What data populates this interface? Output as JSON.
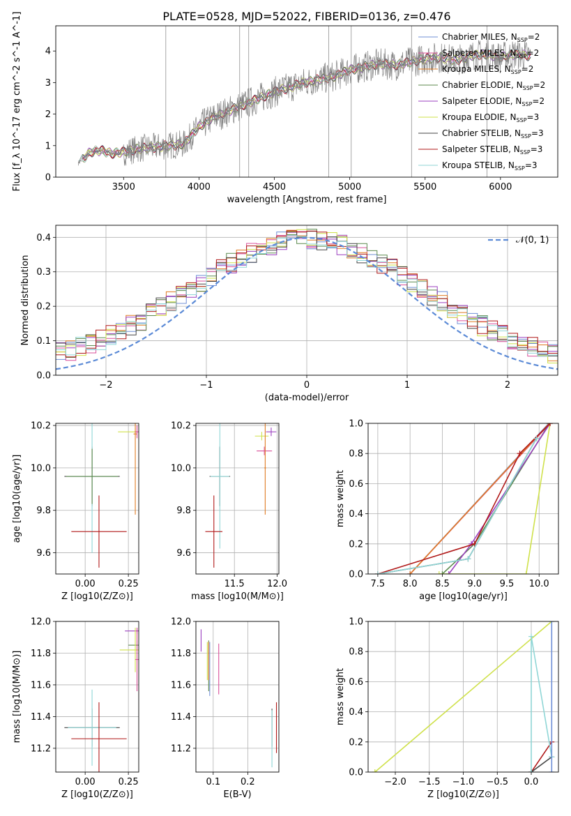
{
  "figure": {
    "title": "PLATE=0528, MJD=52022, FIBERID=0136, z=0.476"
  },
  "palette": {
    "Chabrier MILES": "#6f8fd6",
    "Salpeter MILES": "#d94f9a",
    "Kroupa MILES": "#e07b22",
    "Chabrier ELODIE": "#5c8a4e",
    "Salpeter ELODIE": "#9b3fbf",
    "Kroupa ELODIE": "#cfe14a",
    "Chabrier STELIB": "#444444",
    "Salpeter STELIB": "#b01818",
    "Kroupa STELIB": "#8fd6d6",
    "gaussian": "#5b8ad6",
    "observed": "#808080"
  },
  "chart_data": [
    {
      "id": "spectrum",
      "type": "line",
      "title": "PLATE=0528, MJD=52022, FIBERID=0136, z=0.476",
      "xlabel": "wavelength [Angstrom, rest frame]",
      "ylabel": "Flux [f_λ 10^-17 erg cm^-2 s^-1 A^-1]",
      "xlim": [
        3050,
        6380
      ],
      "ylim": [
        0,
        4.8
      ],
      "xticks": [
        3500,
        4000,
        4500,
        5000,
        5500,
        6000
      ],
      "yticks": [
        0,
        1,
        2,
        3,
        4
      ],
      "grid": false,
      "legend_placement": "top-right",
      "observed_flux": {
        "x": [
          3200,
          3280,
          3350,
          3420,
          3500,
          3600,
          3700,
          3800,
          3900,
          4000,
          4100,
          4200,
          4300,
          4400,
          4500,
          4600,
          4700,
          4800,
          4900,
          5000,
          5100,
          5200,
          5300,
          5400,
          5500,
          5600,
          5700,
          5800,
          5900,
          6000,
          6100,
          6200
        ],
        "y": [
          0.45,
          0.8,
          0.85,
          0.75,
          0.8,
          0.9,
          0.95,
          1.0,
          1.05,
          1.6,
          1.9,
          2.1,
          2.3,
          2.5,
          2.7,
          2.85,
          3.0,
          3.1,
          3.2,
          3.4,
          3.5,
          3.6,
          3.55,
          3.65,
          3.75,
          3.8,
          3.7,
          3.85,
          3.9,
          3.8,
          3.9,
          3.85
        ]
      },
      "series": [
        {
          "name": "Chabrier MILES, N_SSP=2"
        },
        {
          "name": "Salpeter MILES, N_SSP=2"
        },
        {
          "name": "Kroupa MILES, N_SSP=2"
        },
        {
          "name": "Chabrier ELODIE, N_SSP=2"
        },
        {
          "name": "Salpeter ELODIE, N_SSP=2"
        },
        {
          "name": "Kroupa ELODIE, N_SSP=3"
        },
        {
          "name": "Chabrier STELIB, N_SSP=3"
        },
        {
          "name": "Salpeter STELIB, N_SSP=3"
        },
        {
          "name": "Kroupa STELIB, N_SSP=3"
        }
      ]
    },
    {
      "id": "residuals",
      "type": "line",
      "xlabel": "(data-model)/error",
      "ylabel": "Normed distribution",
      "xlim": [
        -2.5,
        2.5
      ],
      "ylim": [
        0,
        0.435
      ],
      "xticks": [
        -2,
        -1,
        0,
        1,
        2
      ],
      "yticks": [
        0.0,
        0.1,
        0.2,
        0.3,
        0.4
      ],
      "grid": true,
      "legend": "N(0,1)",
      "legend_placement": "top-right",
      "gaussian": {
        "mean": 0,
        "sigma": 1
      }
    },
    {
      "id": "age-vs-Z",
      "type": "scatter",
      "xlabel": "Z [log10(Z/Z⊙)]",
      "ylabel": "age [log10(age/yr)]",
      "xlim": [
        -0.17,
        0.31
      ],
      "ylim": [
        9.5,
        10.21
      ],
      "xticks": [
        0.0,
        0.25
      ],
      "yticks": [
        9.6,
        9.8,
        10.0,
        10.2
      ],
      "grid": true,
      "points": [
        {
          "name": "Chabrier STELIB",
          "x": 0.04,
          "y": 9.96,
          "xerr": 0.16,
          "yerr": 0.14
        },
        {
          "name": "Kroupa STELIB",
          "x": 0.04,
          "y": 9.96,
          "xerr": 0.14,
          "yerr": 0.36
        },
        {
          "name": "Chabrier ELODIE",
          "x": 0.04,
          "y": 9.96,
          "xerr": 0.15,
          "yerr": 0.13
        },
        {
          "name": "Salpeter STELIB",
          "x": 0.08,
          "y": 9.7,
          "xerr": 0.16,
          "yerr": 0.17
        },
        {
          "name": "Kroupa ELODIE",
          "x": 0.29,
          "y": 10.17,
          "xerr": 0.1,
          "yerr": 0.02
        },
        {
          "name": "Kroupa MILES",
          "x": 0.29,
          "y": 10.16,
          "xerr": 0.01,
          "yerr": 0.38
        },
        {
          "name": "Salpeter MILES",
          "x": 0.3,
          "y": 10.17,
          "xerr": 0.01,
          "yerr": 0.03
        }
      ]
    },
    {
      "id": "age-vs-mass",
      "type": "scatter",
      "xlabel": "mass [log10(M/M⊙)]",
      "ylabel": "",
      "xlim": [
        11.05,
        12.02
      ],
      "ylim": [
        9.5,
        10.21
      ],
      "xticks": [
        11.5,
        12.0
      ],
      "yticks": [
        9.6,
        9.8,
        10.0,
        10.2
      ],
      "grid": true,
      "points": [
        {
          "name": "Chabrier STELIB",
          "x": 11.33,
          "y": 9.96,
          "xerr": 0.12,
          "yerr": 0.14
        },
        {
          "name": "Kroupa STELIB",
          "x": 11.33,
          "y": 9.96,
          "xerr": 0.11,
          "yerr": 0.34
        },
        {
          "name": "Salpeter STELIB",
          "x": 11.26,
          "y": 9.7,
          "xerr": 0.1,
          "yerr": 0.17
        },
        {
          "name": "Salpeter ELODIE",
          "x": 11.93,
          "y": 10.17,
          "xerr": 0.06,
          "yerr": 0.02
        },
        {
          "name": "Kroupa ELODIE",
          "x": 11.82,
          "y": 10.15,
          "xerr": 0.08,
          "yerr": 0.02
        },
        {
          "name": "Salpeter MILES",
          "x": 11.85,
          "y": 10.08,
          "xerr": 0.09,
          "yerr": 0.02
        },
        {
          "name": "Kroupa MILES",
          "x": 11.86,
          "y": 10.0,
          "xerr": 0.01,
          "yerr": 0.22
        }
      ]
    },
    {
      "id": "weight-vs-age",
      "type": "line",
      "xlabel": "age [log10(age/yr)]",
      "ylabel": "mass weight",
      "xlim": [
        7.35,
        10.3
      ],
      "ylim": [
        0,
        1
      ],
      "xticks": [
        7.5,
        8.0,
        8.5,
        9.0,
        9.5,
        10.0
      ],
      "yticks": [
        0.0,
        0.2,
        0.4,
        0.6,
        0.8,
        1.0
      ],
      "grid": true,
      "series": [
        {
          "name": "Chabrier MILES",
          "x": [
            8.0,
            10.15
          ],
          "y": [
            0.0,
            1.0
          ]
        },
        {
          "name": "Salpeter MILES",
          "x": [
            8.0,
            10.17
          ],
          "y": [
            0.0,
            1.0
          ]
        },
        {
          "name": "Kroupa MILES",
          "x": [
            8.0,
            10.16
          ],
          "y": [
            0.0,
            1.0
          ]
        },
        {
          "name": "Chabrier ELODIE",
          "x": [
            8.5,
            9.0,
            10.16
          ],
          "y": [
            0.0,
            0.2,
            1.0
          ]
        },
        {
          "name": "Salpeter ELODIE",
          "x": [
            8.6,
            8.95,
            10.17
          ],
          "y": [
            0.0,
            0.2,
            1.0
          ]
        },
        {
          "name": "Kroupa ELODIE",
          "x": [
            8.45,
            9.8,
            10.17
          ],
          "y": [
            0.0,
            0.0,
            1.0
          ]
        },
        {
          "name": "Chabrier STELIB",
          "x": [
            7.5,
            8.9,
            9.96
          ],
          "y": [
            0.0,
            0.1,
            0.9
          ]
        },
        {
          "name": "Salpeter STELIB",
          "x": [
            7.5,
            9.0,
            9.7,
            10.17
          ],
          "y": [
            0.0,
            0.2,
            0.8,
            1.0
          ]
        },
        {
          "name": "Kroupa STELIB",
          "x": [
            7.5,
            8.9,
            9.96
          ],
          "y": [
            0.0,
            0.1,
            0.9
          ]
        }
      ]
    },
    {
      "id": "mass-vs-Z",
      "type": "scatter",
      "xlabel": "Z [log10(Z/Z⊙)]",
      "ylabel": "mass [log10(M/M⊙)]",
      "xlim": [
        -0.17,
        0.31
      ],
      "ylim": [
        11.05,
        12.0
      ],
      "xticks": [
        0.0,
        0.25
      ],
      "yticks": [
        11.2,
        11.4,
        11.6,
        11.8,
        12.0
      ],
      "grid": true,
      "points": [
        {
          "name": "Chabrier STELIB",
          "x": 0.04,
          "y": 11.33,
          "xerr": 0.16,
          "yerr": 0.12
        },
        {
          "name": "Kroupa STELIB",
          "x": 0.04,
          "y": 11.33,
          "xerr": 0.14,
          "yerr": 0.24
        },
        {
          "name": "Salpeter STELIB",
          "x": 0.08,
          "y": 11.26,
          "xerr": 0.16,
          "yerr": 0.23
        },
        {
          "name": "Salpeter ELODIE",
          "x": 0.3,
          "y": 11.94,
          "xerr": 0.07,
          "yerr": 0.02
        },
        {
          "name": "Chabrier ELODIE",
          "x": 0.3,
          "y": 11.85,
          "xerr": 0.05,
          "yerr": 0.03
        },
        {
          "name": "Kroupa ELODIE",
          "x": 0.29,
          "y": 11.82,
          "xerr": 0.09,
          "yerr": 0.14
        },
        {
          "name": "Salpeter MILES",
          "x": 0.3,
          "y": 11.76,
          "xerr": 0.01,
          "yerr": 0.2
        }
      ]
    },
    {
      "id": "mass-vs-ebv",
      "type": "scatter",
      "xlabel": "E(B-V)",
      "ylabel": "",
      "xlim": [
        0.05,
        0.29
      ],
      "ylim": [
        11.05,
        12.0
      ],
      "xticks": [
        0.1,
        0.2
      ],
      "yticks": [
        11.2,
        11.4,
        11.6,
        11.8,
        12.0
      ],
      "grid": true,
      "points": [
        {
          "name": "Salpeter ELODIE",
          "x": 0.065,
          "y": 11.88,
          "xerr": 0,
          "yerr": 0.07
        },
        {
          "name": "Kroupa ELODIE",
          "x": 0.083,
          "y": 11.75,
          "xerr": 0,
          "yerr": 0.12
        },
        {
          "name": "Chabrier ELODIE",
          "x": 0.087,
          "y": 11.72,
          "xerr": 0,
          "yerr": 0.16
        },
        {
          "name": "Chabrier MILES",
          "x": 0.09,
          "y": 11.7,
          "xerr": 0,
          "yerr": 0.17
        },
        {
          "name": "Salpeter MILES",
          "x": 0.116,
          "y": 11.7,
          "xerr": 0,
          "yerr": 0.16
        },
        {
          "name": "Kroupa MILES",
          "x": 0.087,
          "y": 11.75,
          "xerr": 0,
          "yerr": 0.12
        },
        {
          "name": "Chabrier STELIB",
          "x": 0.27,
          "y": 11.33,
          "xerr": 0,
          "yerr": 0.12
        },
        {
          "name": "Kroupa STELIB",
          "x": 0.27,
          "y": 11.26,
          "xerr": 0,
          "yerr": 0.18
        },
        {
          "name": "Salpeter STELIB",
          "x": 0.283,
          "y": 11.33,
          "xerr": 0,
          "yerr": 0.16
        }
      ]
    },
    {
      "id": "weight-vs-Z",
      "type": "line",
      "xlabel": "Z [log10(Z/Z⊙)]",
      "ylabel": "mass weight",
      "xlim": [
        -2.4,
        0.4
      ],
      "ylim": [
        0,
        1
      ],
      "xticks": [
        -2.0,
        -1.5,
        -1.0,
        -0.5,
        0.0,
        0.5
      ],
      "yticks": [
        0.0,
        0.2,
        0.4,
        0.6,
        0.8,
        1.0
      ],
      "grid": true,
      "series": [
        {
          "name": "Kroupa ELODIE",
          "x": [
            -2.3,
            0.3
          ],
          "y": [
            0.0,
            1.0
          ]
        },
        {
          "name": "Salpeter STELIB",
          "x": [
            0.0,
            0.3
          ],
          "y": [
            0.0,
            0.2
          ]
        },
        {
          "name": "Chabrier STELIB",
          "x": [
            0.0,
            0.3
          ],
          "y": [
            0.0,
            0.1
          ]
        },
        {
          "name": "Kroupa STELIB",
          "x": [
            0.0,
            0.0,
            0.3
          ],
          "y": [
            0.0,
            0.9,
            0.1
          ]
        },
        {
          "name": "Chabrier MILES",
          "x": [
            0.3,
            0.3
          ],
          "y": [
            0.0,
            1.0
          ]
        }
      ]
    }
  ],
  "panel_labels": {
    "spectrum": {
      "xlabel": "wavelength [Angstrom, rest frame]"
    },
    "residuals": {
      "xlabel": "(data-model)/error",
      "ylabel": "Normed distribution",
      "legend": "𝒩(0, 1)"
    }
  }
}
